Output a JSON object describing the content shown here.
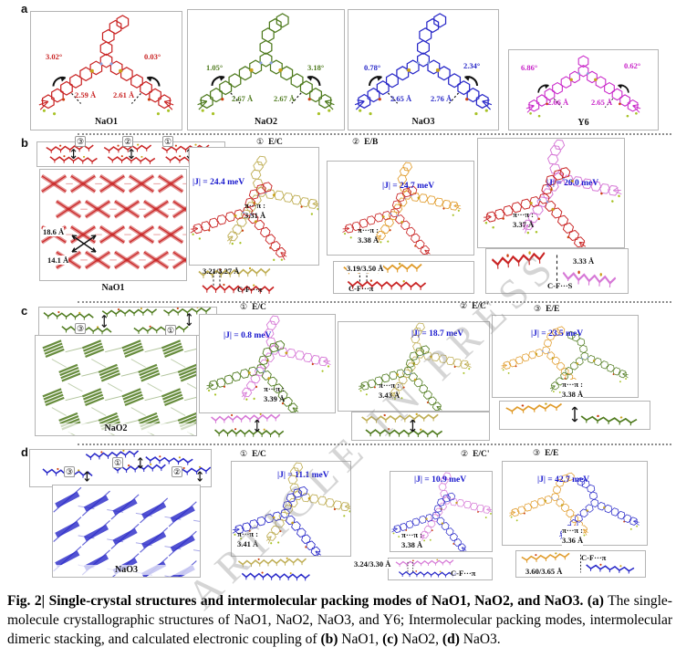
{
  "colors": {
    "nao1": "#c92323",
    "nao2": "#4e7a1d",
    "nao3": "#2828c8",
    "y6": "#c823c8",
    "khaki": "#bfae55",
    "orange": "#e09a28",
    "pink": "#d678d6",
    "coupling_blue": "#1717cd"
  },
  "watermark": "ARTICLE IN PRESS",
  "panel_a": {
    "label": "a",
    "molecules": [
      {
        "name": "NaO1",
        "angle_left": "3.02°",
        "angle_right": "0.03°",
        "dist_left": "2.59 Å",
        "dist_right": "2.61 Å"
      },
      {
        "name": "NaO2",
        "angle_left": "1.05°",
        "angle_right": "3.18°",
        "dist_left": "2.67 Å",
        "dist_right": "2.67 Å"
      },
      {
        "name": "NaO3",
        "angle_left": "0.78°",
        "angle_right": "2.34°",
        "dist_left": "2.65 Å",
        "dist_right": "2.76 Å"
      },
      {
        "name": "Y6",
        "angle_left": "6.86°",
        "angle_right": "0.62°",
        "dist_left": "2.66 Å",
        "dist_right": "2.65 Å"
      }
    ]
  },
  "panel_b": {
    "label": "b",
    "crystal": "NaO1",
    "strip_numbers": [
      "③",
      "②",
      "①"
    ],
    "lattice_d1": "18.6 Å",
    "lattice_d2": "14.1 Å",
    "dimers": [
      {
        "num": "①",
        "mode": "E/C",
        "coupling": "|J| = 24.4 meV",
        "pi": "π···π :",
        "pi_dist": "3.31 Å",
        "contact_dist": "3.21/3.27 Å",
        "contact": "C-F···π"
      },
      {
        "num": "②",
        "mode": "E/B",
        "coupling": "|J| = 24.7 meV",
        "pi": "π···π :",
        "pi_dist": "3.38 Å",
        "contact_dist": "3.19/3.50 Å",
        "contact": "C-F···π"
      },
      {
        "num": "③",
        "mode": "E/B'",
        "coupling": "|J| = 26.0 meV",
        "pi": "π···π :",
        "pi_dist": "3.37 Å",
        "contact_dist": "3.33 Å",
        "contact": "C-F···S"
      }
    ]
  },
  "panel_c": {
    "label": "c",
    "crystal": "NaO2",
    "strip_numbers": [
      "③",
      "①"
    ],
    "dimers": [
      {
        "num": "①",
        "mode": "E/C",
        "coupling": "|J| = 0.8 meV",
        "pi": "π···π :",
        "pi_dist": "3.39 Å"
      },
      {
        "num": "②",
        "mode": "E/C'",
        "coupling": "|J| = 18.7 meV",
        "pi": "π···π :",
        "pi_dist": "3.43 Å"
      },
      {
        "num": "③",
        "mode": "E/E",
        "coupling": "|J| = 23.5 meV",
        "pi": "π···π :",
        "pi_dist": "3.38 Å"
      }
    ]
  },
  "panel_d": {
    "label": "d",
    "crystal": "NaO3",
    "strip_numbers": [
      "③",
      "①",
      "②"
    ],
    "dimers": [
      {
        "num": "①",
        "mode": "E/C",
        "coupling": "|J| = 11.1 meV",
        "pi": "π···π :",
        "pi_dist": "3.41 Å"
      },
      {
        "num": "②",
        "mode": "E/C'",
        "coupling": "|J| = 10.9 meV",
        "pi": "π···π :",
        "pi_dist": "3.38 Å",
        "contact_dist": "3.24/3.30 Å",
        "contact": "C-F···π"
      },
      {
        "num": "③",
        "mode": "E/E",
        "coupling": "|J| = 42.7 meV",
        "pi": "π···π :",
        "pi_dist": "3.36 Å",
        "contact_dist": "3.60/3.65 Å",
        "contact": "C-F···π"
      }
    ]
  },
  "caption": {
    "fig_label": "Fig. 2|",
    "title": " Single-crystal structures and intermolecular packing modes of NaO1, NaO2, and NaO3. ",
    "body": [
      {
        "t": "(a)",
        "b": true
      },
      {
        "t": " The single-molecule crystallographic structures of NaO1, NaO2, NaO3, and Y6; Intermolecular packing modes, intermolecular dimeric stacking, and calculated electronic coupling of ",
        "b": false
      },
      {
        "t": "(b)",
        "b": true
      },
      {
        "t": " NaO1, ",
        "b": false
      },
      {
        "t": "(c)",
        "b": true
      },
      {
        "t": " NaO2, ",
        "b": false
      },
      {
        "t": "(d)",
        "b": true
      },
      {
        "t": " NaO3.",
        "b": false
      }
    ]
  }
}
